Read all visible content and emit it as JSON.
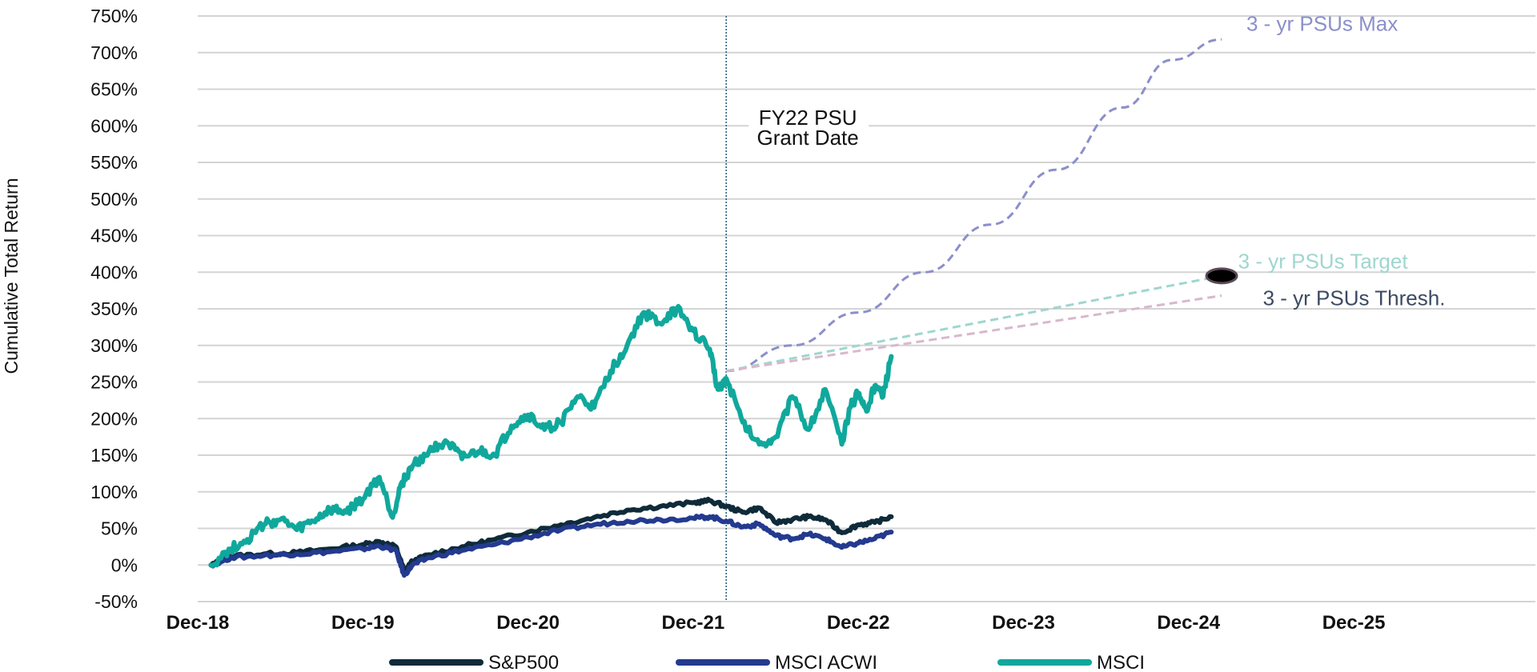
{
  "chart_data": {
    "type": "line",
    "title": "",
    "ylabel": "Cumulative Total Return",
    "xlabel": "",
    "ylim": [
      -50,
      750
    ],
    "xlim": [
      0,
      8.1
    ],
    "y_ticks": [
      "-50%",
      "0%",
      "50%",
      "100%",
      "150%",
      "200%",
      "250%",
      "300%",
      "350%",
      "400%",
      "450%",
      "500%",
      "550%",
      "600%",
      "650%",
      "700%",
      "750%"
    ],
    "y_tick_values": [
      -50,
      0,
      50,
      100,
      150,
      200,
      250,
      300,
      350,
      400,
      450,
      500,
      550,
      600,
      650,
      700,
      750
    ],
    "x_ticks": [
      "Dec-18",
      "Dec-19",
      "Dec-20",
      "Dec-21",
      "Dec-22",
      "Dec-23",
      "Dec-24",
      "Dec-25"
    ],
    "x_tick_values": [
      0,
      1,
      2,
      3,
      4,
      5,
      6,
      7
    ],
    "x_unit_note": "years since Dec-18",
    "grid": true,
    "legend_position": "bottom",
    "series": [
      {
        "name": "S&P500",
        "color": "#0f2b3a",
        "x": [
          0.08,
          0.2,
          0.4,
          0.6,
          0.8,
          1.0,
          1.1,
          1.2,
          1.25,
          1.3,
          1.4,
          1.6,
          1.8,
          2.0,
          2.2,
          2.4,
          2.6,
          2.8,
          3.0,
          3.1,
          3.2,
          3.3,
          3.4,
          3.5,
          3.6,
          3.7,
          3.8,
          3.9,
          4.0,
          4.1,
          4.2
        ],
        "values": [
          0,
          12,
          15,
          17,
          22,
          28,
          32,
          25,
          -8,
          5,
          14,
          25,
          35,
          45,
          55,
          65,
          75,
          80,
          85,
          88,
          80,
          72,
          78,
          58,
          62,
          66,
          62,
          44,
          55,
          58,
          66
        ]
      },
      {
        "name": "MSCI ACWI",
        "color": "#233a8f",
        "x": [
          0.08,
          0.2,
          0.4,
          0.6,
          0.8,
          1.0,
          1.1,
          1.2,
          1.25,
          1.3,
          1.4,
          1.6,
          1.8,
          2.0,
          2.2,
          2.4,
          2.6,
          2.8,
          3.0,
          3.1,
          3.2,
          3.3,
          3.4,
          3.5,
          3.6,
          3.7,
          3.8,
          3.9,
          4.0,
          4.1,
          4.2
        ],
        "values": [
          0,
          10,
          13,
          15,
          18,
          22,
          26,
          20,
          -14,
          0,
          10,
          20,
          28,
          38,
          48,
          55,
          60,
          62,
          64,
          66,
          60,
          52,
          56,
          40,
          36,
          42,
          36,
          24,
          30,
          36,
          45
        ]
      },
      {
        "name": "MSCI",
        "color": "#10a89c",
        "x": [
          0.08,
          0.2,
          0.3,
          0.4,
          0.5,
          0.6,
          0.7,
          0.8,
          0.9,
          1.0,
          1.1,
          1.18,
          1.23,
          1.3,
          1.4,
          1.5,
          1.6,
          1.7,
          1.8,
          1.9,
          2.0,
          2.1,
          2.2,
          2.3,
          2.4,
          2.5,
          2.6,
          2.7,
          2.8,
          2.9,
          3.0,
          3.1,
          3.15,
          3.2,
          3.3,
          3.4,
          3.5,
          3.6,
          3.7,
          3.8,
          3.9,
          3.95,
          4.0,
          4.05,
          4.1,
          4.15,
          4.2
        ],
        "values": [
          0,
          22,
          35,
          55,
          62,
          48,
          60,
          75,
          72,
          90,
          120,
          65,
          110,
          135,
          155,
          170,
          145,
          155,
          150,
          190,
          205,
          185,
          195,
          230,
          215,
          265,
          300,
          345,
          330,
          350,
          320,
          295,
          240,
          255,
          195,
          165,
          175,
          230,
          185,
          240,
          165,
          215,
          235,
          210,
          245,
          230,
          285
        ]
      }
    ],
    "projections": [
      {
        "name": "3-yr PSUs Max",
        "color": "#8b8fcb",
        "x": [
          3.2,
          3.6,
          4.0,
          4.4,
          4.8,
          5.2,
          5.6,
          5.9,
          6.2
        ],
        "values": [
          265,
          300,
          345,
          400,
          465,
          540,
          625,
          690,
          718
        ]
      },
      {
        "name": "3-yr PSUs Target",
        "color": "#9fd6cf",
        "x": [
          3.2,
          6.2
        ],
        "values": [
          265,
          395
        ]
      },
      {
        "name": "3-yr PSUs Thresh.",
        "color": "#d8b8cc",
        "x": [
          3.2,
          6.2
        ],
        "values": [
          265,
          368
        ]
      }
    ],
    "marker": {
      "x": 6.2,
      "value": 395,
      "color": "#000000"
    },
    "vline": {
      "x": 3.2,
      "label_lines": [
        "FY22 PSU",
        "Grant Date"
      ]
    },
    "annotations": [
      {
        "text": "3 - yr PSUs Max",
        "color": "#8b8fcb",
        "x": 6.35,
        "value": 730
      },
      {
        "text": "3 - yr PSUs Target",
        "color": "#9fd6cf",
        "x": 6.3,
        "value": 405
      },
      {
        "text": "3 - yr PSUs Thresh.",
        "color": "#3c4a63",
        "x": 6.45,
        "value": 355
      }
    ]
  },
  "legend": [
    {
      "label": "S&P500",
      "color": "#0f2b3a"
    },
    {
      "label": "MSCI ACWI",
      "color": "#233a8f"
    },
    {
      "label": "MSCI",
      "color": "#10a89c"
    }
  ]
}
